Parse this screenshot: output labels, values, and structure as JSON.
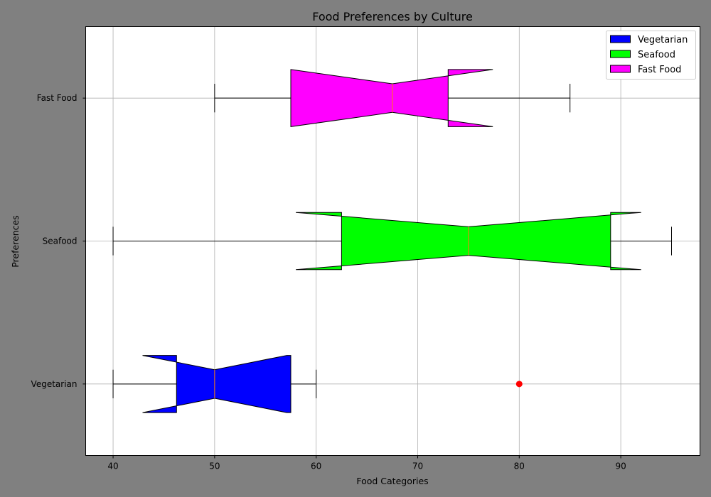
{
  "chart_data": {
    "type": "boxplot",
    "orientation": "horizontal",
    "notched": true,
    "title": "Food Preferences by Culture",
    "xlabel": "Food Categories",
    "ylabel": "Preferences",
    "xlim": [
      37.3,
      97.8
    ],
    "xticks": [
      40,
      50,
      60,
      70,
      80,
      90
    ],
    "categories": [
      "Vegetarian",
      "Seafood",
      "Fast Food"
    ],
    "grid": true,
    "legend": {
      "placement": "top-right",
      "entries": [
        "Vegetarian",
        "Seafood",
        "Fast Food"
      ]
    },
    "series": [
      {
        "name": "Vegetarian",
        "color": "#0000ff",
        "whisker_low": 40,
        "q1": 46.25,
        "median": 50,
        "q3": 57.5,
        "whisker_high": 60,
        "notch_low": 42.9,
        "notch_high": 57.1,
        "outliers": [
          80
        ]
      },
      {
        "name": "Seafood",
        "color": "#00ff00",
        "whisker_low": 40,
        "q1": 62.5,
        "median": 75,
        "q3": 89,
        "whisker_high": 95,
        "notch_low": 58,
        "notch_high": 92,
        "outliers": []
      },
      {
        "name": "Fast Food",
        "color": "#ff00ff",
        "whisker_low": 50,
        "q1": 57.5,
        "median": 67.5,
        "q3": 73,
        "whisker_high": 85,
        "notch_low": 57.5,
        "notch_high": 77.4,
        "outliers": []
      }
    ],
    "outlier_color": "#ff0000",
    "median_color": "#ff7f0e"
  }
}
